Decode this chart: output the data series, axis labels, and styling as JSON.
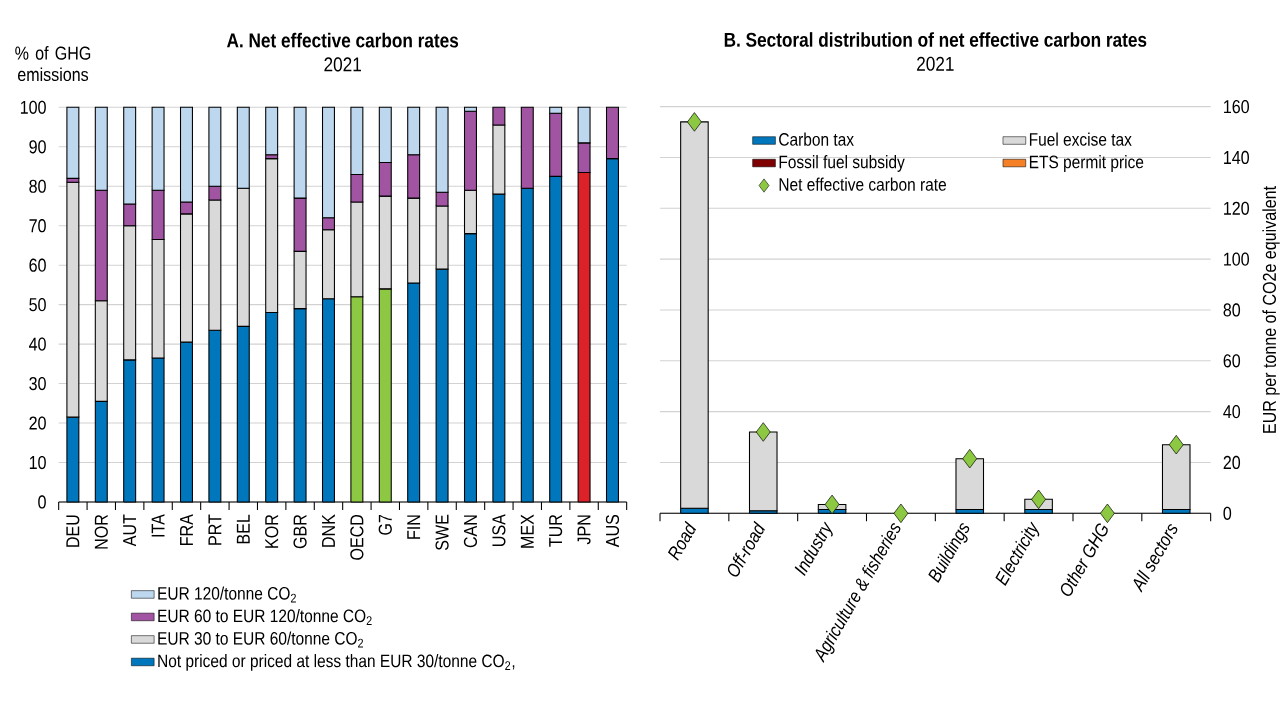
{
  "chart_data": [
    {
      "type": "bar",
      "stacked": true,
      "title": "A. Net effective carbon rates",
      "subtitle": "2021",
      "ylabel": "% of GHG emissions",
      "categories": [
        "DEU",
        "NOR",
        "AUT",
        "ITA",
        "FRA",
        "PRT",
        "BEL",
        "KOR",
        "GBR",
        "DNK",
        "OECD",
        "G7",
        "FIN",
        "SWE",
        "CAN",
        "USA",
        "MEX",
        "TUR",
        "JPN",
        "AUS"
      ],
      "ylim": [
        0,
        100
      ],
      "yticks": [
        0,
        10,
        20,
        30,
        40,
        50,
        60,
        70,
        80,
        90,
        100
      ],
      "grid": "y",
      "legend": "bottom",
      "series": [
        {
          "name": "Not priced or priced at less than EUR 30/tonne CO$_{2}$,",
          "color": "#0077bd",
          "colors": [
            "#0077bd",
            "#0077bd",
            "#0077bd",
            "#0077bd",
            "#0077bd",
            "#0077bd",
            "#0077bd",
            "#0077bd",
            "#0077bd",
            "#0077bd",
            "#8cc841",
            "#8cc841",
            "#0077bd",
            "#0077bd",
            "#0077bd",
            "#0077bd",
            "#0077bd",
            "#0077bd",
            "#dc2228",
            "#0077bd"
          ],
          "values": [
            21.5,
            25.5,
            36,
            36.5,
            40.5,
            43.5,
            44.5,
            48,
            49,
            51.5,
            52,
            54,
            55.5,
            59,
            68,
            78,
            79.5,
            82.5,
            83.5,
            87
          ]
        },
        {
          "name": "EUR 30 to EUR 60/tonne CO$_{2}$",
          "color": "#d9d9d9",
          "values": [
            59.5,
            25.5,
            34,
            30,
            32.5,
            33,
            35,
            39,
            14.5,
            17.5,
            24,
            23.5,
            21.5,
            16,
            11,
            17.5,
            0,
            0,
            0,
            0
          ]
        },
        {
          "name": "EUR 60 to EUR 120/tonne CO$_{2}$",
          "color": "#a154a1",
          "values": [
            1,
            28,
            5.5,
            12.5,
            3,
            3.5,
            0,
            1,
            13.5,
            3,
            7,
            8.5,
            11,
            3.5,
            20,
            4.5,
            20.5,
            16,
            7.5,
            13
          ]
        },
        {
          "name": "EUR 120/tonne CO$_{2}$",
          "color": "#bdd7ee",
          "values": [
            18,
            21,
            24.5,
            21,
            24,
            20,
            20.5,
            12,
            23,
            28,
            17,
            14,
            12,
            21.5,
            1,
            0,
            0,
            1.5,
            9,
            0
          ]
        }
      ]
    },
    {
      "type": "bar",
      "stacked": true,
      "title": "B. Sectoral distribution of net effective carbon rates",
      "subtitle": "2021",
      "ylabel": "EUR per tonne of CO2e equivalent",
      "categories": [
        "Road",
        "Off-road",
        "Industry",
        "Agriculture & fisheries",
        "Buildings",
        "Electricity",
        "Other GHG",
        "All sectors"
      ],
      "ylim": [
        0,
        160
      ],
      "yticks": [
        0,
        20,
        40,
        60,
        80,
        100,
        120,
        140,
        160
      ],
      "grid": "y",
      "legend": "top",
      "series": [
        {
          "name": "Carbon tax",
          "color": "#0077bd",
          "values": [
            2,
            1,
            1.5,
            0,
            1.5,
            1.5,
            0,
            1.5
          ]
        },
        {
          "name": "Fuel excise tax",
          "color": "#d9d9d9",
          "values": [
            152,
            31,
            2,
            0,
            20,
            4,
            0,
            25.5
          ]
        },
        {
          "name": "Fossil fuel subsidy",
          "color": "#7f0000",
          "values": [
            0,
            0,
            0,
            0,
            0,
            0,
            0,
            0
          ]
        },
        {
          "name": "ETS permit price",
          "color": "#f58025",
          "values": [
            0,
            0,
            0,
            0,
            0,
            0,
            0,
            0
          ]
        },
        {
          "name": "Net effective carbon rate",
          "type": "scatter",
          "marker": "diamond",
          "color": "#8cc841",
          "values": [
            154,
            32,
            3.5,
            0,
            21.5,
            5.5,
            0,
            27
          ]
        }
      ]
    }
  ]
}
